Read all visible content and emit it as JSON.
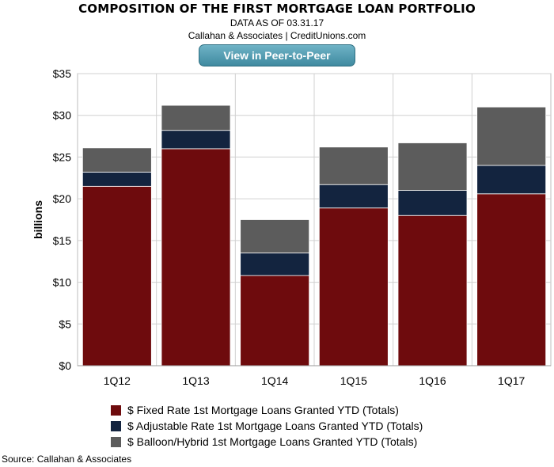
{
  "header": {
    "title": "COMPOSITION OF THE FIRST MORTGAGE LOAN PORTFOLIO",
    "date_line": "DATA AS OF 03.31.17",
    "attribution_line": "Callahan & Associates | CreditUnions.com",
    "button_label": "View in Peer-to-Peer"
  },
  "chart_data": {
    "type": "bar",
    "stacked": true,
    "categories": [
      "1Q12",
      "1Q13",
      "1Q14",
      "1Q15",
      "1Q16",
      "1Q17"
    ],
    "series": [
      {
        "name": "$ Fixed Rate 1st Mortgage Loans Granted YTD (Totals)",
        "color": "#6e0b0d",
        "values": [
          21.5,
          26.0,
          10.8,
          18.9,
          18.0,
          20.6
        ]
      },
      {
        "name": "$ Adjustable Rate 1st Mortgage Loans Granted YTD (Totals)",
        "color": "#13243f",
        "values": [
          1.7,
          2.2,
          2.7,
          2.8,
          3.0,
          3.4
        ]
      },
      {
        "name": "$ Balloon/Hybrid 1st Mortgage Loans Granted YTD (Totals)",
        "color": "#5c5c5c",
        "values": [
          2.9,
          3.0,
          4.0,
          4.5,
          5.7,
          7.0
        ]
      }
    ],
    "ylabel": "billions",
    "ylim": [
      0,
      35
    ],
    "yticks": [
      "$0",
      "$5",
      "$10",
      "$15",
      "$20",
      "$25",
      "$30",
      "$35"
    ],
    "grid": true,
    "legend_position": "bottom"
  },
  "footer": {
    "source": "Source: Callahan & Associates"
  }
}
